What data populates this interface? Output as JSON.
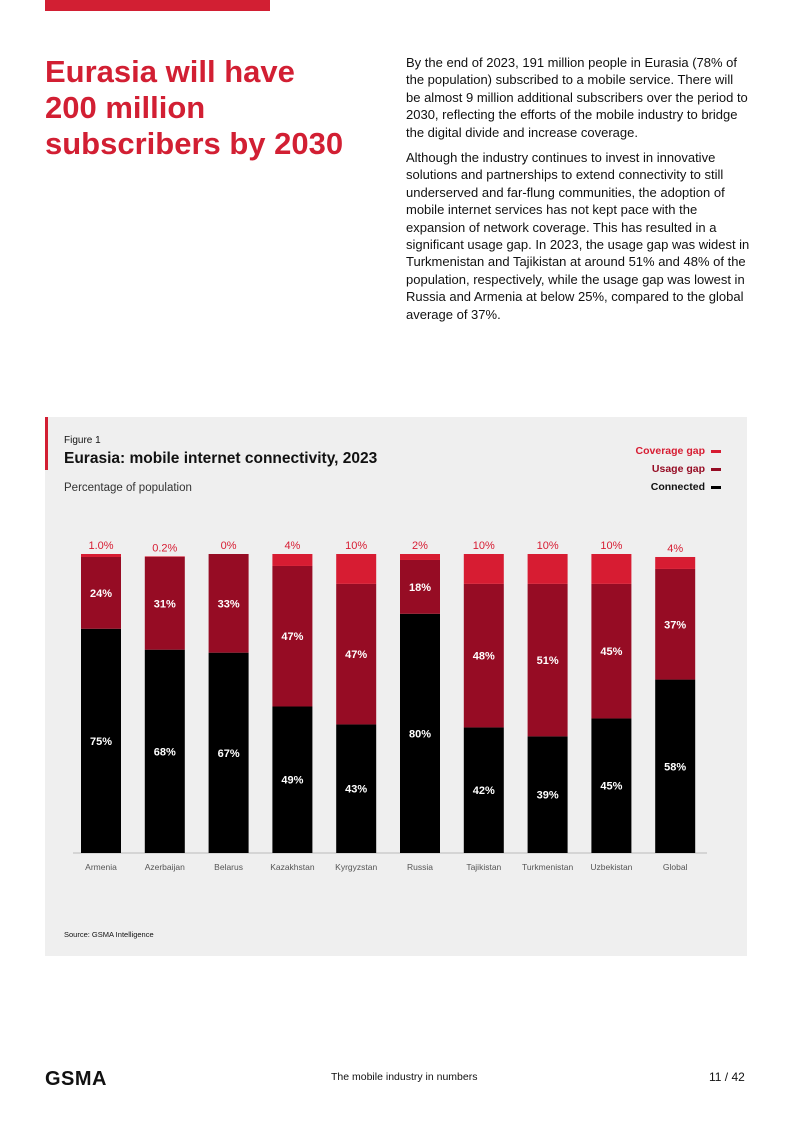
{
  "headline": "Eurasia will have 200 million subscribers by 2030",
  "paragraphs": [
    "By the end of 2023, 191 million people in Eurasia (78% of the population) subscribed to a mobile service. There will be almost 9 million additional subscribers over the period to 2030, reflecting the efforts of the mobile industry to bridge the digital divide and increase coverage.",
    "Although the industry continues to invest in innovative solutions and partnerships to extend connectivity to still underserved and far-flung communities, the adoption of mobile internet services has not kept pace with the expansion of network coverage. This has resulted in a significant usage gap. In 2023, the usage gap was widest in Turkmenistan and Tajikistan at around 51% and 48% of the population, respectively, while the usage gap was lowest in Russia and Armenia at below 25%, compared to the global average of 37%."
  ],
  "figure": {
    "label": "Figure 1",
    "title": "Eurasia: mobile internet connectivity, 2023",
    "subtitle": "Percentage of population",
    "source": "Source: GSMA Intelligence"
  },
  "colors": {
    "coverage": "#d71c32",
    "usage": "#960c24",
    "connected": "#000000",
    "accent": "#d21f33"
  },
  "chart_data": {
    "type": "bar",
    "stacked": true,
    "title": "Eurasia: mobile internet connectivity, 2023",
    "ylabel": "Percentage of population",
    "ylim": [
      0,
      100
    ],
    "categories": [
      "Armenia",
      "Azerbaijan",
      "Belarus",
      "Kazakhstan",
      "Kyrgyzstan",
      "Russia",
      "Tajikistan",
      "Turkmenistan",
      "Uzbekistan",
      "Global"
    ],
    "series": [
      {
        "name": "Connected",
        "values": [
          75,
          68,
          67,
          49,
          43,
          80,
          42,
          39,
          45,
          58
        ],
        "labels": [
          "75%",
          "68%",
          "67%",
          "49%",
          "43%",
          "80%",
          "42%",
          "39%",
          "45%",
          "58%"
        ]
      },
      {
        "name": "Usage gap",
        "values": [
          24,
          31,
          33,
          47,
          47,
          18,
          48,
          51,
          45,
          37
        ],
        "labels": [
          "24%",
          "31%",
          "33%",
          "47%",
          "47%",
          "18%",
          "48%",
          "51%",
          "45%",
          "37%"
        ]
      },
      {
        "name": "Coverage gap",
        "values": [
          1.0,
          0.2,
          0,
          4,
          10,
          2,
          10,
          10,
          10,
          4
        ],
        "labels": [
          "1.0%",
          "0.2%",
          "0%",
          "4%",
          "10%",
          "2%",
          "10%",
          "10%",
          "10%",
          "4%"
        ]
      }
    ],
    "legend": [
      "Coverage gap",
      "Usage gap",
      "Connected"
    ],
    "legend_position": "top-right"
  },
  "footer": {
    "logo": "GSMA",
    "title": "The mobile industry in numbers",
    "page": "11 / 42"
  }
}
